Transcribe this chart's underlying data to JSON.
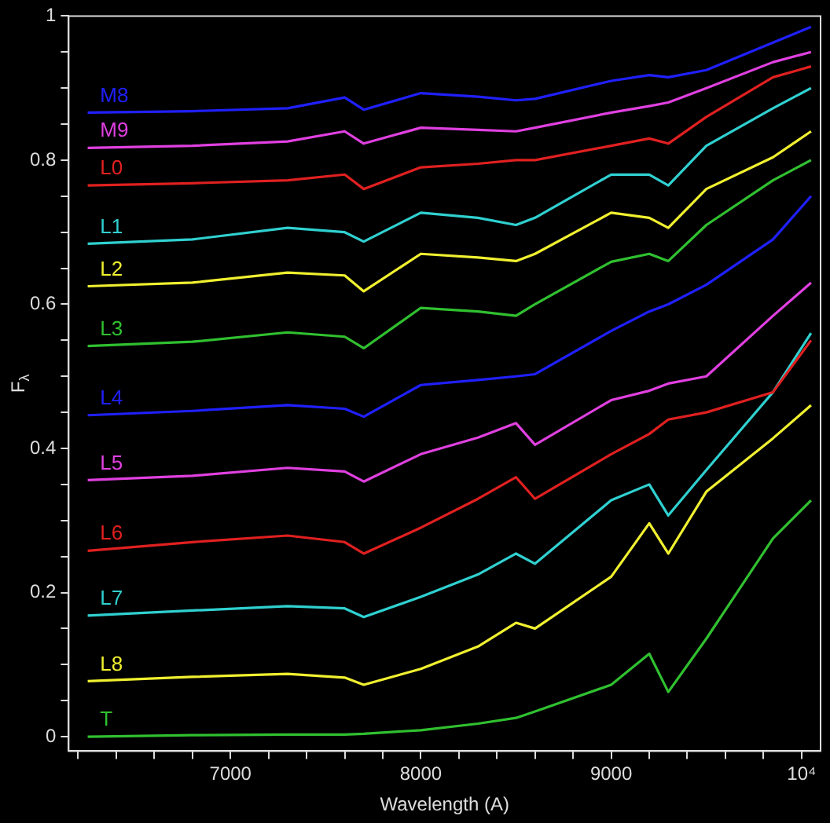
{
  "chart_data": {
    "type": "line",
    "xlabel": "Wavelength (A)",
    "ylabel": "F$_{λ}$",
    "x": [
      6250,
      6800,
      7300,
      7600,
      7700,
      8000,
      8300,
      8500,
      8600,
      9000,
      9200,
      9300,
      9500,
      9850,
      10050
    ],
    "xlim": [
      6150,
      10100
    ],
    "ylim": [
      -0.02,
      1
    ],
    "xticks": [
      {
        "value": 6200,
        "label": null
      },
      {
        "value": 6400,
        "label": null
      },
      {
        "value": 6600,
        "label": null
      },
      {
        "value": 6800,
        "label": null
      },
      7000,
      {
        "value": 7200,
        "label": null
      },
      {
        "value": 7400,
        "label": null
      },
      {
        "value": 7600,
        "label": null
      },
      {
        "value": 7800,
        "label": null
      },
      8000,
      {
        "value": 8200,
        "label": null
      },
      {
        "value": 8400,
        "label": null
      },
      {
        "value": 8600,
        "label": null
      },
      {
        "value": 8800,
        "label": null
      },
      9000,
      {
        "value": 9200,
        "label": null
      },
      {
        "value": 9400,
        "label": null
      },
      {
        "value": 9600,
        "label": null
      },
      {
        "value": 9800,
        "label": null
      },
      {
        "value": 10000,
        "label": "10⁴"
      }
    ],
    "yticks": [
      0,
      {
        "value": 0.05,
        "label": null
      },
      {
        "value": 0.1,
        "label": null
      },
      {
        "value": 0.15,
        "label": null
      },
      0.2,
      {
        "value": 0.25,
        "label": null
      },
      {
        "value": 0.3,
        "label": null
      },
      {
        "value": 0.35,
        "label": null
      },
      0.4,
      {
        "value": 0.45,
        "label": null
      },
      {
        "value": 0.5,
        "label": null
      },
      {
        "value": 0.55,
        "label": null
      },
      0.6,
      {
        "value": 0.65,
        "label": null
      },
      {
        "value": 0.7,
        "label": null
      },
      {
        "value": 0.75,
        "label": null
      },
      0.8,
      {
        "value": 0.85,
        "label": null
      },
      {
        "value": 0.9,
        "label": null
      },
      {
        "value": 0.95,
        "label": null
      },
      1
    ],
    "series": [
      {
        "name": "M8",
        "color": "#2020ff",
        "values": [
          0.866,
          0.868,
          0.872,
          0.887,
          0.87,
          0.893,
          0.888,
          0.883,
          0.885,
          0.91,
          0.918,
          0.915,
          0.925,
          0.963,
          0.985
        ]
      },
      {
        "name": "M9",
        "color": "#e040e0",
        "values": [
          0.817,
          0.82,
          0.826,
          0.84,
          0.823,
          0.845,
          0.842,
          0.84,
          0.845,
          0.866,
          0.875,
          0.88,
          0.9,
          0.936,
          0.95
        ]
      },
      {
        "name": "L0",
        "color": "#e02020",
        "values": [
          0.765,
          0.768,
          0.772,
          0.78,
          0.76,
          0.79,
          0.795,
          0.8,
          0.8,
          0.82,
          0.83,
          0.823,
          0.86,
          0.915,
          0.93
        ]
      },
      {
        "name": "L1",
        "color": "#30d0d0",
        "values": [
          0.684,
          0.69,
          0.706,
          0.7,
          0.687,
          0.727,
          0.72,
          0.71,
          0.72,
          0.78,
          0.78,
          0.765,
          0.82,
          0.872,
          0.9
        ]
      },
      {
        "name": "L2",
        "color": "#f0f030",
        "values": [
          0.625,
          0.63,
          0.644,
          0.64,
          0.618,
          0.67,
          0.665,
          0.66,
          0.67,
          0.727,
          0.72,
          0.706,
          0.76,
          0.804,
          0.84
        ]
      },
      {
        "name": "L3",
        "color": "#30c030",
        "values": [
          0.542,
          0.548,
          0.561,
          0.555,
          0.539,
          0.595,
          0.59,
          0.584,
          0.6,
          0.659,
          0.67,
          0.66,
          0.71,
          0.772,
          0.8
        ]
      },
      {
        "name": "L4",
        "color": "#2020ff",
        "values": [
          0.446,
          0.452,
          0.46,
          0.455,
          0.444,
          0.488,
          0.495,
          0.5,
          0.503,
          0.563,
          0.59,
          0.6,
          0.627,
          0.69,
          0.75
        ]
      },
      {
        "name": "L5",
        "color": "#e040e0",
        "values": [
          0.356,
          0.362,
          0.373,
          0.368,
          0.354,
          0.392,
          0.415,
          0.435,
          0.405,
          0.467,
          0.48,
          0.49,
          0.5,
          0.584,
          0.63
        ]
      },
      {
        "name": "L6",
        "color": "#e02020",
        "values": [
          0.258,
          0.27,
          0.279,
          0.27,
          0.254,
          0.29,
          0.33,
          0.36,
          0.33,
          0.392,
          0.42,
          0.44,
          0.45,
          0.478,
          0.55
        ]
      },
      {
        "name": "L7",
        "color": "#30d0d0",
        "values": [
          0.168,
          0.175,
          0.181,
          0.178,
          0.166,
          0.194,
          0.225,
          0.254,
          0.24,
          0.328,
          0.35,
          0.307,
          0.37,
          0.478,
          0.56
        ]
      },
      {
        "name": "L8",
        "color": "#f0f030",
        "values": [
          0.077,
          0.083,
          0.087,
          0.082,
          0.072,
          0.094,
          0.125,
          0.158,
          0.15,
          0.222,
          0.296,
          0.254,
          0.34,
          0.414,
          0.46
        ]
      },
      {
        "name": "T",
        "color": "#30c030",
        "values": [
          0,
          0.002,
          0.003,
          0.003,
          0.004,
          0.009,
          0.018,
          0.026,
          0.035,
          0.072,
          0.115,
          0.062,
          0.136,
          0.275,
          0.328
        ]
      }
    ]
  }
}
